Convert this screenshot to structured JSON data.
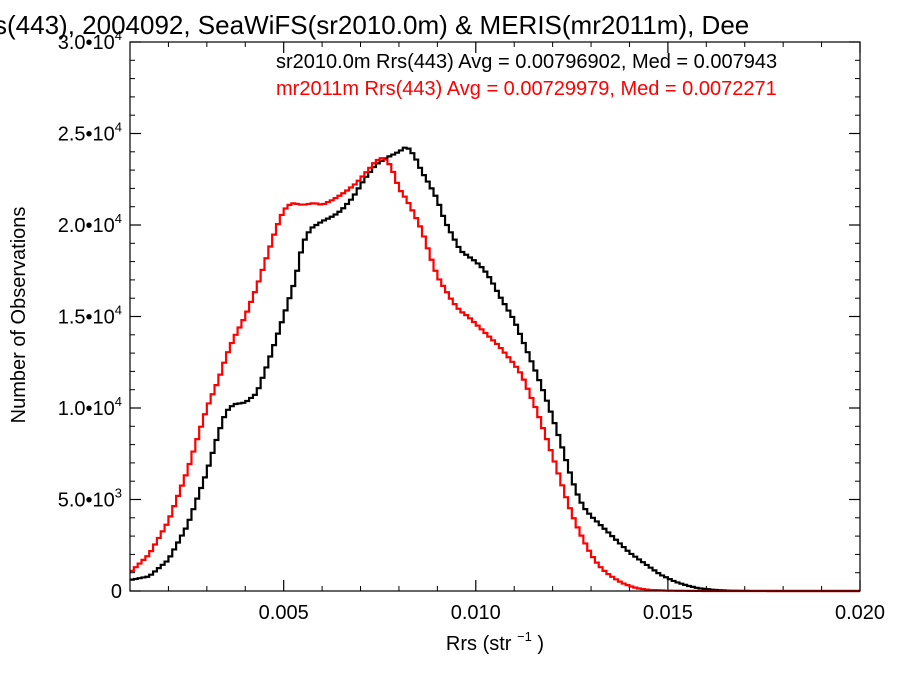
{
  "chart_data": {
    "type": "line",
    "title": "s(443), 2004092, SeaWiFS(sr2010.0m) & MERIS(mr2011m), Dee",
    "xlabel": "Rrs (str",
    "xlabel_sup": "−1",
    "xlabel_suffix": ")",
    "ylabel": "Number of Observations",
    "xlim": [
      0.001,
      0.02
    ],
    "ylim": [
      0,
      30000
    ],
    "step": true,
    "x_ticks": [
      {
        "value": 0.005,
        "label": "0.005"
      },
      {
        "value": 0.01,
        "label": "0.010"
      },
      {
        "value": 0.015,
        "label": "0.015"
      },
      {
        "value": 0.02,
        "label": "0.020"
      }
    ],
    "y_ticks": [
      {
        "value": 0,
        "mant": "0",
        "exp": ""
      },
      {
        "value": 5000,
        "mant": "5.0•10",
        "exp": "3"
      },
      {
        "value": 10000,
        "mant": "1.0•10",
        "exp": "4"
      },
      {
        "value": 15000,
        "mant": "1.5•10",
        "exp": "4"
      },
      {
        "value": 20000,
        "mant": "2.0•10",
        "exp": "4"
      },
      {
        "value": 25000,
        "mant": "2.5•10",
        "exp": "4"
      },
      {
        "value": 30000,
        "mant": "3.0•10",
        "exp": "4"
      }
    ],
    "legend_placement": "top-right",
    "series": [
      {
        "name": "sr2010.0m",
        "legend": "sr2010.0m Rrs(443) Avg = 0.00796902, Med = 0.007943",
        "color": "#000000",
        "points": [
          [
            0.001,
            600
          ],
          [
            0.0015,
            800
          ],
          [
            0.002,
            1700
          ],
          [
            0.0025,
            3600
          ],
          [
            0.003,
            6500
          ],
          [
            0.0033,
            8600
          ],
          [
            0.0035,
            9800
          ],
          [
            0.0037,
            10200
          ],
          [
            0.004,
            10300
          ],
          [
            0.0043,
            10800
          ],
          [
            0.0046,
            12500
          ],
          [
            0.005,
            15000
          ],
          [
            0.0053,
            17000
          ],
          [
            0.0055,
            19000
          ],
          [
            0.0057,
            19800
          ],
          [
            0.006,
            20200
          ],
          [
            0.0063,
            20500
          ],
          [
            0.0065,
            20800
          ],
          [
            0.0068,
            21500
          ],
          [
            0.0071,
            22500
          ],
          [
            0.0074,
            23300
          ],
          [
            0.0077,
            23700
          ],
          [
            0.008,
            24000
          ],
          [
            0.0082,
            24300
          ],
          [
            0.0084,
            23800
          ],
          [
            0.0086,
            22900
          ],
          [
            0.0088,
            22200
          ],
          [
            0.009,
            21400
          ],
          [
            0.0092,
            20200
          ],
          [
            0.0094,
            19400
          ],
          [
            0.0096,
            18600
          ],
          [
            0.0098,
            18300
          ],
          [
            0.01,
            18000
          ],
          [
            0.0102,
            17600
          ],
          [
            0.0104,
            17000
          ],
          [
            0.0106,
            16200
          ],
          [
            0.0108,
            15500
          ],
          [
            0.011,
            14800
          ],
          [
            0.0112,
            13800
          ],
          [
            0.0114,
            12800
          ],
          [
            0.0116,
            11800
          ],
          [
            0.0118,
            10700
          ],
          [
            0.012,
            9500
          ],
          [
            0.0122,
            8200
          ],
          [
            0.0124,
            6800
          ],
          [
            0.0126,
            5500
          ],
          [
            0.0128,
            4600
          ],
          [
            0.013,
            4100
          ],
          [
            0.0132,
            3700
          ],
          [
            0.0134,
            3300
          ],
          [
            0.0136,
            2900
          ],
          [
            0.0138,
            2500
          ],
          [
            0.014,
            2100
          ],
          [
            0.0142,
            1800
          ],
          [
            0.0144,
            1500
          ],
          [
            0.0146,
            1200
          ],
          [
            0.0148,
            900
          ],
          [
            0.015,
            700
          ],
          [
            0.0152,
            500
          ],
          [
            0.0155,
            300
          ],
          [
            0.0158,
            150
          ],
          [
            0.0162,
            60
          ],
          [
            0.0166,
            20
          ],
          [
            0.017,
            5
          ],
          [
            0.018,
            0
          ],
          [
            0.02,
            0
          ]
        ]
      },
      {
        "name": "mr2011m",
        "legend": "mr2011m Rrs(443) Avg = 0.00729979, Med = 0.0072271",
        "color": "#ff0000",
        "points": [
          [
            0.001,
            1000
          ],
          [
            0.0015,
            2000
          ],
          [
            0.002,
            3800
          ],
          [
            0.0025,
            6600
          ],
          [
            0.003,
            10000
          ],
          [
            0.0033,
            11500
          ],
          [
            0.0035,
            12800
          ],
          [
            0.0037,
            13800
          ],
          [
            0.004,
            15000
          ],
          [
            0.0043,
            16600
          ],
          [
            0.0046,
            18500
          ],
          [
            0.0048,
            19800
          ],
          [
            0.005,
            20800
          ],
          [
            0.0052,
            21200
          ],
          [
            0.0055,
            21100
          ],
          [
            0.0058,
            21200
          ],
          [
            0.006,
            21100
          ],
          [
            0.0063,
            21400
          ],
          [
            0.0066,
            21800
          ],
          [
            0.0069,
            22300
          ],
          [
            0.0072,
            23000
          ],
          [
            0.0074,
            23500
          ],
          [
            0.0076,
            23700
          ],
          [
            0.0078,
            23200
          ],
          [
            0.008,
            22000
          ],
          [
            0.0082,
            21400
          ],
          [
            0.0084,
            20600
          ],
          [
            0.0086,
            19700
          ],
          [
            0.0088,
            18400
          ],
          [
            0.009,
            17200
          ],
          [
            0.0092,
            16500
          ],
          [
            0.0094,
            15800
          ],
          [
            0.0096,
            15300
          ],
          [
            0.0098,
            15000
          ],
          [
            0.01,
            14600
          ],
          [
            0.0102,
            14200
          ],
          [
            0.0104,
            13800
          ],
          [
            0.0106,
            13400
          ],
          [
            0.0108,
            12900
          ],
          [
            0.011,
            12400
          ],
          [
            0.0112,
            11800
          ],
          [
            0.0114,
            10800
          ],
          [
            0.0116,
            9800
          ],
          [
            0.0118,
            8600
          ],
          [
            0.012,
            7400
          ],
          [
            0.0122,
            6100
          ],
          [
            0.0124,
            4800
          ],
          [
            0.0126,
            3700
          ],
          [
            0.0128,
            2800
          ],
          [
            0.013,
            2000
          ],
          [
            0.0132,
            1400
          ],
          [
            0.0134,
            1000
          ],
          [
            0.0136,
            700
          ],
          [
            0.0138,
            450
          ],
          [
            0.014,
            280
          ],
          [
            0.0142,
            150
          ],
          [
            0.0145,
            60
          ],
          [
            0.015,
            20
          ],
          [
            0.016,
            0
          ],
          [
            0.02,
            0
          ]
        ]
      }
    ]
  }
}
